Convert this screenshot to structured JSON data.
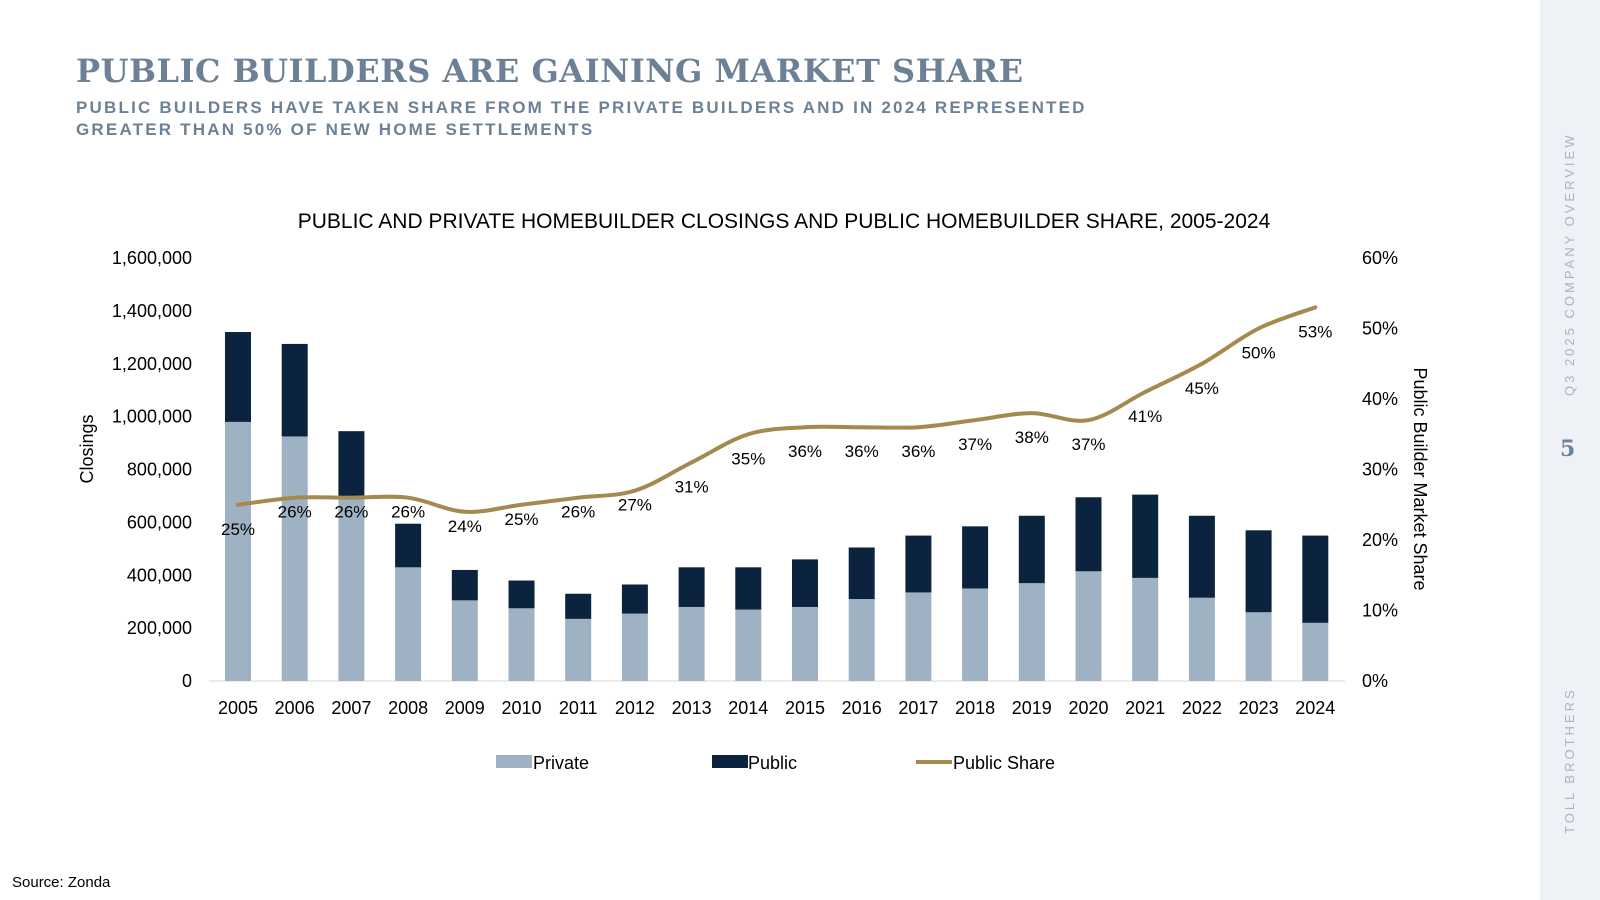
{
  "header": {
    "title": "PUBLIC BUILDERS ARE GAINING MARKET SHARE",
    "subtitle": "PUBLIC BUILDERS HAVE TAKEN SHARE FROM THE PRIVATE BUILDERS AND IN 2024 REPRESENTED GREATER THAN 50% OF NEW HOME SETTLEMENTS"
  },
  "sidebar": {
    "report": "Q3 2025 COMPANY OVERVIEW",
    "page_number": "5",
    "company": "TOLL BROTHERS"
  },
  "footer": {
    "source": "Source: Zonda"
  },
  "colors": {
    "private": "#9fb2c4",
    "public": "#0c2340",
    "share_line": "#a58a4f",
    "heading": "#6d8196"
  },
  "chart_data": {
    "type": "bar",
    "stacked": true,
    "title": "PUBLIC AND PRIVATE HOMEBUILDER CLOSINGS AND PUBLIC HOMEBUILDER SHARE, 2005-2024",
    "ylabel": "Closings",
    "y2label": "Public Builder Market Share",
    "ylim": [
      0,
      1600000
    ],
    "y2lim": [
      0,
      60
    ],
    "yticks": [
      "0",
      "200,000",
      "400,000",
      "600,000",
      "800,000",
      "1,000,000",
      "1,200,000",
      "1,400,000",
      "1,600,000"
    ],
    "y2ticks": [
      "0%",
      "10%",
      "20%",
      "30%",
      "40%",
      "50%",
      "60%"
    ],
    "categories": [
      "2005",
      "2006",
      "2007",
      "2008",
      "2009",
      "2010",
      "2011",
      "2012",
      "2013",
      "2014",
      "2015",
      "2016",
      "2017",
      "2018",
      "2019",
      "2020",
      "2021",
      "2022",
      "2023",
      "2024"
    ],
    "series": [
      {
        "name": "Private",
        "type": "bar",
        "values": [
          980000,
          925000,
          700000,
          430000,
          305000,
          275000,
          235000,
          255000,
          280000,
          270000,
          280000,
          310000,
          335000,
          350000,
          370000,
          415000,
          390000,
          315000,
          260000,
          220000
        ]
      },
      {
        "name": "Public",
        "type": "bar",
        "values": [
          340000,
          350000,
          245000,
          165000,
          115000,
          105000,
          95000,
          110000,
          150000,
          160000,
          180000,
          195000,
          215000,
          235000,
          255000,
          280000,
          315000,
          310000,
          310000,
          330000
        ]
      },
      {
        "name": "Public Share",
        "type": "line",
        "axis": "right",
        "values": [
          25,
          26,
          26,
          26,
          24,
          25,
          26,
          27,
          31,
          35,
          36,
          36,
          36,
          37,
          38,
          37,
          41,
          45,
          50,
          53
        ]
      }
    ],
    "share_labels": [
      "25%",
      "26%",
      "26%",
      "26%",
      "24%",
      "25%",
      "26%",
      "27%",
      "31%",
      "35%",
      "36%",
      "36%",
      "36%",
      "37%",
      "38%",
      "37%",
      "41%",
      "45%",
      "50%",
      "53%"
    ],
    "legend": [
      "Private",
      "Public",
      "Public Share"
    ],
    "legend_position": "bottom",
    "grid": false
  }
}
